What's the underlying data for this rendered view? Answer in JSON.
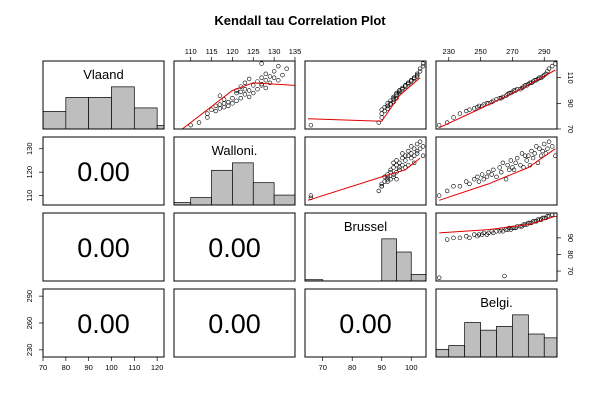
{
  "chart_data": {
    "type": "scatter-matrix",
    "title": "Kendall tau Correlation Plot",
    "variables": [
      "Vlaand",
      "Walloni.",
      "Brussel",
      "Belgi."
    ],
    "ranges": [
      [
        70,
        123
      ],
      [
        106,
        135
      ],
      [
        64,
        105
      ],
      [
        222,
        298
      ]
    ],
    "ticks": [
      [
        70,
        80,
        90,
        100,
        110,
        120
      ],
      [
        110,
        115,
        120,
        125,
        130,
        135
      ],
      [
        70,
        80,
        90,
        100
      ],
      [
        230,
        250,
        270,
        290
      ]
    ],
    "side_ticks": [
      [
        70,
        90,
        110
      ],
      [
        110,
        120,
        130
      ],
      [
        70,
        80,
        90
      ],
      [
        230,
        260,
        290
      ]
    ],
    "histograms": [
      {
        "breaks": [
          70,
          80,
          90,
          100,
          110,
          120,
          123
        ],
        "counts": [
          5,
          9,
          9,
          12,
          6,
          1
        ]
      },
      {
        "breaks": [
          105,
          110,
          115,
          120,
          125,
          130,
          135
        ],
        "counts": [
          1,
          3,
          14,
          17,
          9,
          4
        ]
      },
      {
        "breaks": [
          60,
          70,
          80,
          90,
          95,
          100,
          105
        ],
        "counts": [
          1,
          0,
          0,
          32,
          22,
          5
        ]
      },
      {
        "breaks": [
          220,
          230,
          240,
          250,
          260,
          270,
          280,
          290,
          298
        ],
        "counts": [
          2,
          3,
          9,
          7,
          8,
          11,
          6,
          5
        ]
      }
    ],
    "correlation_text": "0.00",
    "x": {
      "Vlaand": [
        73,
        75,
        79,
        82,
        84,
        85,
        86,
        87,
        88,
        88,
        89,
        90,
        90,
        91,
        92,
        93,
        94,
        94,
        95,
        96,
        97,
        98,
        98,
        99,
        100,
        100,
        101,
        101,
        102,
        103,
        104,
        104,
        105,
        106,
        106,
        107,
        108,
        108,
        109,
        110,
        110,
        111,
        112,
        113,
        115,
        117,
        119,
        121
      ],
      "Walloni.": [
        110,
        112,
        114,
        114,
        116,
        115,
        117,
        118,
        116,
        119,
        117,
        118,
        120,
        119,
        121,
        118,
        122,
        120,
        124,
        117,
        123,
        121,
        125,
        122,
        121,
        124,
        126,
        123,
        128,
        122,
        127,
        125,
        127,
        123,
        129,
        126,
        128,
        131,
        124,
        130,
        127,
        129,
        132,
        128,
        130,
        133,
        131,
        127
      ],
      "Brussel": [
        66,
        89,
        90,
        90,
        91,
        90,
        92,
        91,
        92,
        92,
        93,
        92,
        93,
        94,
        93,
        94,
        94,
        95,
        94,
        95,
        95,
        96,
        95,
        96,
        96,
        96,
        97,
        97,
        97,
        98,
        98,
        98,
        99,
        99,
        99,
        100,
        100,
        100,
        101,
        101,
        101,
        102,
        102,
        102,
        103,
        103,
        104,
        104
      ],
      "Belgi.": [
        224,
        229,
        233,
        237,
        241,
        243,
        246,
        248,
        249,
        251,
        252,
        254,
        255,
        257,
        258,
        260,
        262,
        263,
        264,
        266,
        267,
        268,
        269,
        270,
        271,
        272,
        273,
        275,
        276,
        277,
        278,
        279,
        280,
        281,
        282,
        283,
        284,
        285,
        286,
        287,
        288,
        289,
        290,
        291,
        292,
        293,
        295,
        297
      ]
    },
    "fit_lines": {
      "Vlaand_vs_Walloni.": [
        [
          108,
          70
        ],
        [
          120,
          100
        ],
        [
          125,
          106
        ],
        [
          135,
          104
        ]
      ],
      "Vlaand_vs_Brussel": [
        [
          65,
          78
        ],
        [
          90,
          76
        ],
        [
          96,
          96
        ],
        [
          103,
          110
        ]
      ],
      "Vlaand_vs_Belgi.": [
        [
          224,
          71
        ],
        [
          250,
          86
        ],
        [
          275,
          101
        ],
        [
          297,
          116
        ]
      ],
      "Walloni._vs_Brussel": [
        [
          65,
          108
        ],
        [
          90,
          118
        ],
        [
          98,
          121
        ],
        [
          103,
          126
        ]
      ],
      "Walloni._vs_Belgi.": [
        [
          224,
          108
        ],
        [
          255,
          115
        ],
        [
          280,
          122
        ],
        [
          297,
          130
        ]
      ],
      "Brussel_vs_Belgi.": [
        [
          224,
          93
        ],
        [
          255,
          95
        ],
        [
          280,
          98
        ],
        [
          297,
          103
        ]
      ]
    },
    "extra_points": {
      "Walloni._vs_Brussel": [
        [
          66,
          109
        ]
      ],
      "Brussel_vs_Belgi.": [
        [
          265,
          67
        ]
      ]
    }
  }
}
